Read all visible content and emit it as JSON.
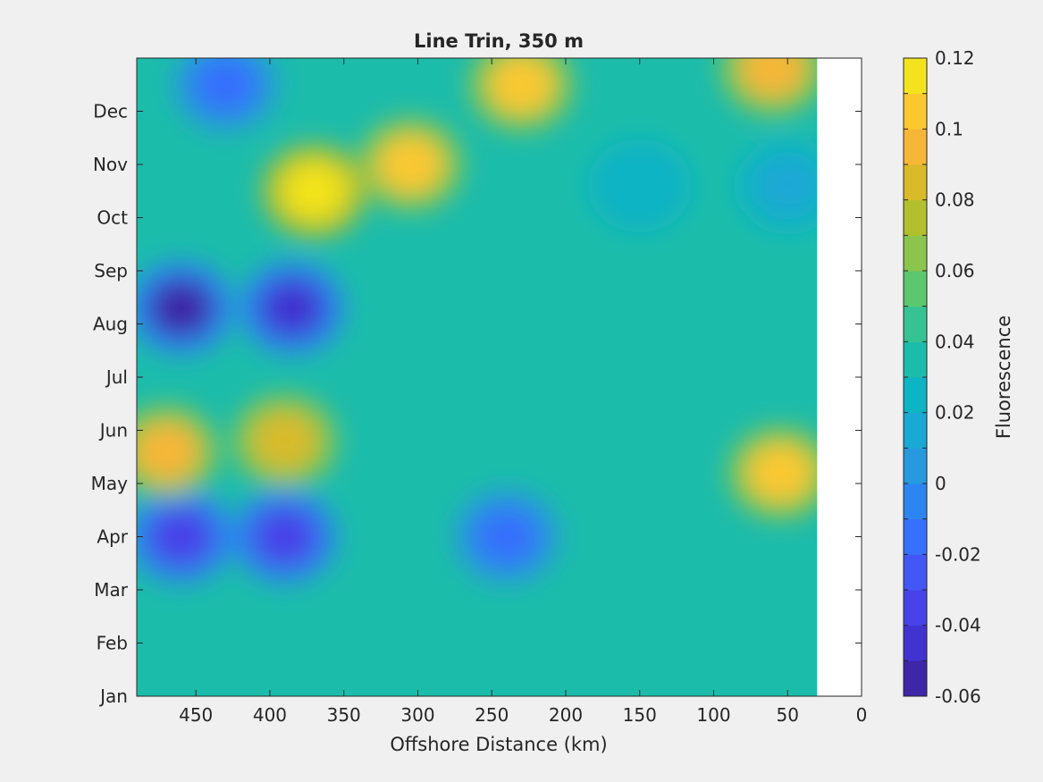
{
  "chart_data": {
    "type": "heatmap",
    "subtype": "filled-contour",
    "title": "Line Trin, 350 m",
    "xlabel": "Offshore Distance (km)",
    "ylabel": "",
    "x_reversed": true,
    "xlim": [
      490,
      0
    ],
    "ylim": [
      0,
      12
    ],
    "x_ticks": [
      450,
      400,
      350,
      300,
      250,
      200,
      150,
      100,
      50,
      0
    ],
    "y_tick_positions": [
      0,
      1,
      2,
      3,
      4,
      5,
      6,
      7,
      8,
      9,
      10,
      11
    ],
    "y_ticks": [
      "Jan",
      "Feb",
      "Mar",
      "Apr",
      "May",
      "Jun",
      "Jul",
      "Aug",
      "Sep",
      "Oct",
      "Nov",
      "Dec"
    ],
    "data_extent_x": [
      30,
      490
    ],
    "grid": false,
    "colorbar": {
      "label": "Fluorescence",
      "range": [
        -0.06,
        0.12
      ],
      "ticks": [
        "0.12",
        "0.1",
        "0.08",
        "0.06",
        "0.04",
        "0.02",
        "0",
        "-0.02",
        "-0.04",
        "-0.06"
      ],
      "levels": [
        -0.06,
        -0.05,
        -0.04,
        -0.03,
        -0.02,
        -0.01,
        0,
        0.01,
        0.02,
        0.03,
        0.04,
        0.05,
        0.06,
        0.07,
        0.08,
        0.09,
        0.1,
        0.11,
        0.12
      ],
      "colors": [
        "#3e26a8",
        "#4133d0",
        "#4743e8",
        "#4257f6",
        "#3670fd",
        "#2c85f0",
        "#2799de",
        "#1aa8d4",
        "#0db4c4",
        "#1cbcab",
        "#36c393",
        "#5bc76f",
        "#8bc54d",
        "#b3c02e",
        "#d9ba29",
        "#f6b637",
        "#fbc830",
        "#f3e31f"
      ],
      "location": "right"
    },
    "features": [
      {
        "x": 460,
        "y": 7.3,
        "value": -0.055
      },
      {
        "x": 385,
        "y": 7.3,
        "value": -0.05
      },
      {
        "x": 460,
        "y": 3.0,
        "value": -0.04
      },
      {
        "x": 390,
        "y": 3.0,
        "value": -0.04
      },
      {
        "x": 240,
        "y": 3.0,
        "value": -0.02
      },
      {
        "x": 430,
        "y": 11.5,
        "value": -0.02
      },
      {
        "x": 370,
        "y": 9.5,
        "value": 0.11
      },
      {
        "x": 305,
        "y": 10.0,
        "value": 0.1
      },
      {
        "x": 230,
        "y": 11.5,
        "value": 0.1
      },
      {
        "x": 55,
        "y": 4.2,
        "value": 0.1
      },
      {
        "x": 60,
        "y": 11.8,
        "value": 0.09
      },
      {
        "x": 390,
        "y": 4.8,
        "value": 0.085
      },
      {
        "x": 470,
        "y": 4.6,
        "value": 0.09
      },
      {
        "x": 150,
        "y": 9.6,
        "value": 0.02
      },
      {
        "x": 50,
        "y": 9.6,
        "value": 0.01
      }
    ]
  }
}
